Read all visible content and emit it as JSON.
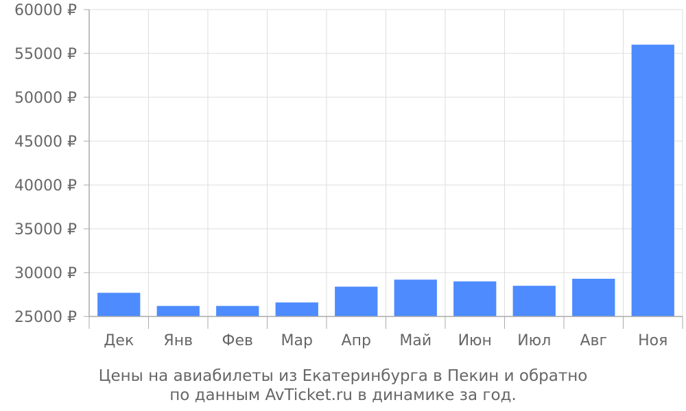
{
  "chart_data": {
    "type": "bar",
    "categories": [
      "Дек",
      "Янв",
      "Фев",
      "Мар",
      "Апр",
      "Май",
      "Июн",
      "Июл",
      "Авг",
      "Ноя"
    ],
    "values": [
      27700,
      26200,
      26200,
      26600,
      28400,
      29200,
      29000,
      28500,
      29300,
      56000
    ],
    "title": "",
    "caption_lines": [
      "Цены на авиабилеты из Екатеринбурга в Пекин и обратно",
      "по данным AvTicket.ru в динамике за год."
    ],
    "xlabel": "",
    "ylabel": "",
    "ylim": [
      25000,
      60000
    ],
    "yticks": [
      "25000 ₽",
      "30000 ₽",
      "35000 ₽",
      "40000 ₽",
      "45000 ₽",
      "50000 ₽",
      "55000 ₽",
      "60000 ₽"
    ],
    "grid": true,
    "legend": "none",
    "bar_color": "#4d8bff"
  }
}
